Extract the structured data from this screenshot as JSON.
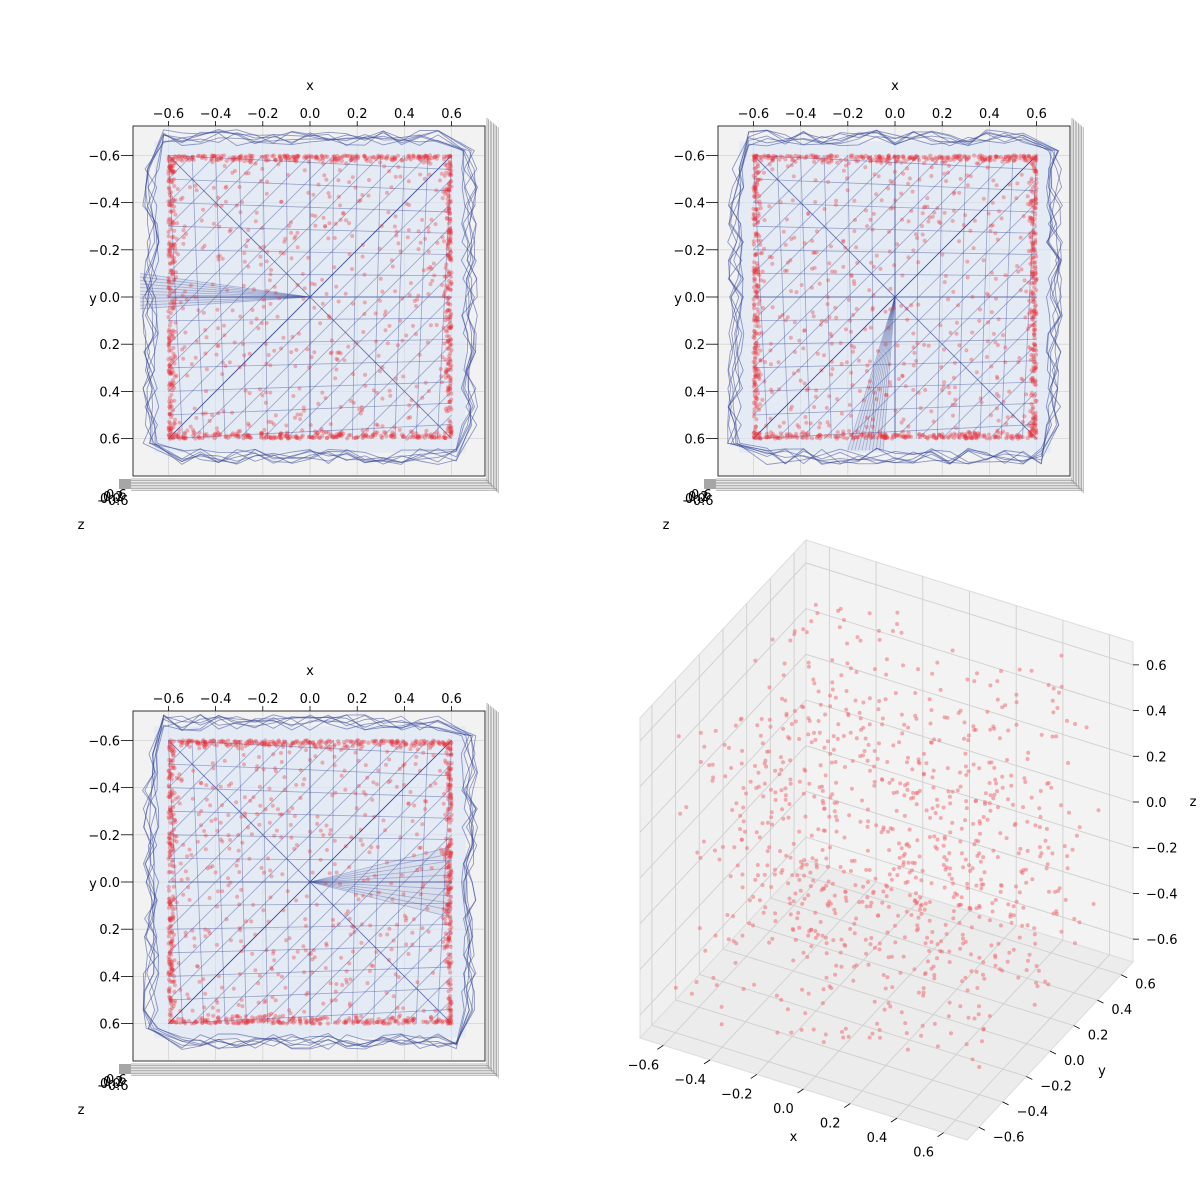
{
  "chart_data": [
    {
      "type": "scatter",
      "view": "top",
      "xlabel": "x",
      "ylabel": "y",
      "zlabel": "z",
      "xticks": [
        -0.6,
        -0.4,
        -0.2,
        0.0,
        0.2,
        0.4,
        0.6
      ],
      "yticks": [
        -0.6,
        -0.4,
        -0.2,
        0.0,
        0.2,
        0.4,
        0.6
      ],
      "xtick_labels": [
        "−0.6",
        "−0.4",
        "−0.2",
        "0.0",
        "0.2",
        "0.4",
        "0.6"
      ],
      "ytick_labels": [
        "−0.6",
        "−0.4",
        "−0.2",
        "0.0",
        "0.2",
        "0.4",
        "0.6"
      ],
      "xlim": [
        -0.75,
        0.75
      ],
      "ylim": [
        -0.75,
        0.75
      ],
      "square_half_width": 0.6,
      "fan_vertex": [
        0.0,
        0.0
      ],
      "fan_targets": [
        [
          -0.72,
          -0.1
        ],
        [
          -0.72,
          0.05
        ]
      ],
      "colors": {
        "points": "#e8303a",
        "mesh": "#3a4a9a",
        "mesh_fill": "#dbe6f5"
      }
    },
    {
      "type": "scatter",
      "view": "top",
      "xlabel": "x",
      "ylabel": "y",
      "zlabel": "z",
      "xticks": [
        -0.6,
        -0.4,
        -0.2,
        0.0,
        0.2,
        0.4,
        0.6
      ],
      "yticks": [
        -0.6,
        -0.4,
        -0.2,
        0.0,
        0.2,
        0.4,
        0.6
      ],
      "xtick_labels": [
        "−0.6",
        "−0.4",
        "−0.2",
        "0.0",
        "0.2",
        "0.4",
        "0.6"
      ],
      "ytick_labels": [
        "−0.6",
        "−0.4",
        "−0.2",
        "0.0",
        "0.2",
        "0.4",
        "0.6"
      ],
      "xlim": [
        -0.75,
        0.75
      ],
      "ylim": [
        -0.75,
        0.75
      ],
      "square_half_width": 0.6,
      "fan_vertex": [
        0.0,
        0.0
      ],
      "fan_targets": [
        [
          -0.2,
          0.65
        ],
        [
          -0.05,
          0.65
        ]
      ],
      "colors": {
        "points": "#e8303a",
        "mesh": "#3a4a9a",
        "mesh_fill": "#dbe6f5"
      }
    },
    {
      "type": "scatter",
      "view": "top",
      "xlabel": "x",
      "ylabel": "y",
      "zlabel": "z",
      "xticks": [
        -0.6,
        -0.4,
        -0.2,
        0.0,
        0.2,
        0.4,
        0.6
      ],
      "yticks": [
        -0.6,
        -0.4,
        -0.2,
        0.0,
        0.2,
        0.4,
        0.6
      ],
      "xtick_labels": [
        "−0.6",
        "−0.4",
        "−0.2",
        "0.0",
        "0.2",
        "0.4",
        "0.6"
      ],
      "ytick_labels": [
        "−0.6",
        "−0.4",
        "−0.2",
        "0.0",
        "0.2",
        "0.4",
        "0.6"
      ],
      "xlim": [
        -0.75,
        0.75
      ],
      "ylim": [
        -0.75,
        0.75
      ],
      "square_half_width": 0.6,
      "fan_vertex": [
        0.0,
        0.0
      ],
      "fan_targets": [
        [
          0.6,
          -0.15
        ],
        [
          0.6,
          0.15
        ]
      ],
      "colors": {
        "points": "#e8303a",
        "mesh": "#3a4a9a",
        "mesh_fill": "#dbe6f5"
      }
    },
    {
      "type": "scatter",
      "view": "perspective",
      "xlabel": "x",
      "ylabel": "y",
      "zlabel": "z",
      "xticks": [
        -0.6,
        -0.4,
        -0.2,
        0.0,
        0.2,
        0.4,
        0.6
      ],
      "yticks": [
        -0.6,
        -0.4,
        -0.2,
        0.0,
        0.2,
        0.4,
        0.6
      ],
      "zticks": [
        -0.6,
        -0.4,
        -0.2,
        0.0,
        0.2,
        0.4,
        0.6
      ],
      "xtick_labels": [
        "−0.6",
        "−0.4",
        "−0.2",
        "0.0",
        "0.2",
        "0.4",
        "0.6"
      ],
      "ytick_labels": [
        "−0.6",
        "−0.4",
        "−0.2",
        "0.0",
        "0.2",
        "0.4",
        "0.6"
      ],
      "ztick_labels": [
        "−0.6",
        "−0.4",
        "−0.2",
        "0.0",
        "0.2",
        "0.4",
        "0.6"
      ],
      "xlim": [
        -0.7,
        0.7
      ],
      "ylim": [
        -0.7,
        0.7
      ],
      "zlim": [
        -0.7,
        0.7
      ],
      "point_count": 900,
      "grid": true,
      "colors": {
        "points": "#f0636b",
        "pane": "#f2f2f2",
        "grid": "#cfcfcf"
      }
    }
  ]
}
